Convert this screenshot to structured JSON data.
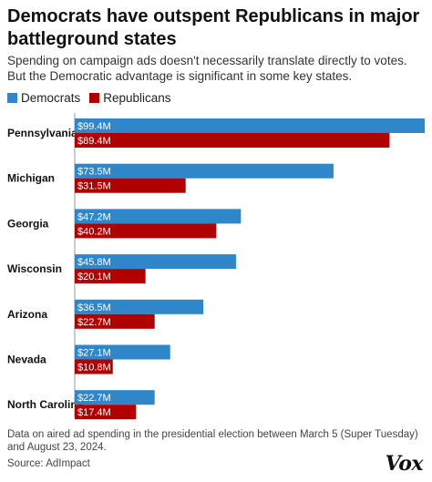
{
  "header": {
    "title": "Democrats have outspent Republicans in major battleground states",
    "subtitle": "Spending on campaign ads doesn't necessarily translate directly to votes. But the Democratic advantage is significant in some key states."
  },
  "footer": {
    "note": "Data on aired ad spending in the presidential election between March 5 (Super Tuesday) and August 23, 2024.",
    "source": "Source: AdImpact",
    "logo": "Vox"
  },
  "colors": {
    "dem": "#2f86c8",
    "rep": "#b10000"
  },
  "chart_data": {
    "type": "bar",
    "orientation": "horizontal",
    "categories": [
      "Pennsylvania",
      "Michigan",
      "Georgia",
      "Wisconsin",
      "Arizona",
      "Nevada",
      "North Carolina"
    ],
    "series": [
      {
        "name": "Democrats",
        "values": [
          99.4,
          73.5,
          47.2,
          45.8,
          36.5,
          27.1,
          22.7
        ],
        "labels": [
          "$99.4M",
          "$73.5M",
          "$47.2M",
          "$45.8M",
          "$36.5M",
          "$27.1M",
          "$22.7M"
        ]
      },
      {
        "name": "Republicans",
        "values": [
          89.4,
          31.5,
          40.2,
          20.1,
          22.7,
          10.8,
          17.4
        ],
        "labels": [
          "$89.4M",
          "$31.5M",
          "$40.2M",
          "$20.1M",
          "$22.7M",
          "$10.8M",
          "$17.4M"
        ]
      }
    ],
    "xlim": [
      0,
      99.4
    ],
    "legend": "top-left",
    "grid": false
  }
}
